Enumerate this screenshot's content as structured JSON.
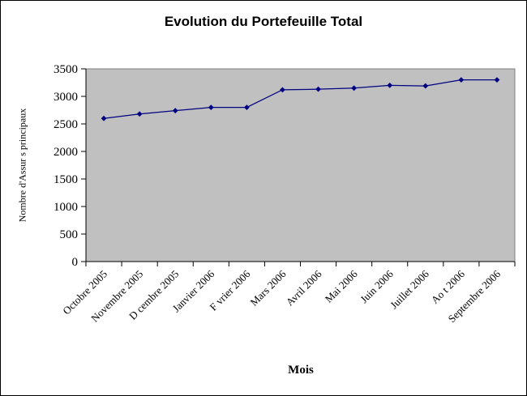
{
  "chart": {
    "title": "Evolution du Portefeuille Total",
    "x_axis_title": "Mois",
    "y_axis_title": "Nombre d'Assur s principaux"
  },
  "chart_data": {
    "type": "line",
    "categories": [
      "Octobre 2005",
      "Novembre 2005",
      "D cembre 2005",
      "Janvier 2006",
      "F vrier 2006",
      "Mars 2006",
      "Avril 2006",
      "Mai 2006",
      "Juin 2006",
      "Juillet 2006",
      "Ao t 2006",
      "Septembre 2006"
    ],
    "values": [
      2600,
      2680,
      2740,
      2800,
      2800,
      3120,
      3130,
      3150,
      3200,
      3190,
      3300,
      3300
    ],
    "title": "Evolution du Portefeuille Total",
    "xlabel": "Mois",
    "ylabel": "Nombre d'Assur s principaux",
    "ylim": [
      0,
      3500
    ],
    "yticks": [
      0,
      500,
      1000,
      1500,
      2000,
      2500,
      3000,
      3500
    ],
    "grid": false,
    "legend": "none",
    "plot_bg_color": "#c0c0c0",
    "line_color": "#000080",
    "marker": "diamond"
  }
}
